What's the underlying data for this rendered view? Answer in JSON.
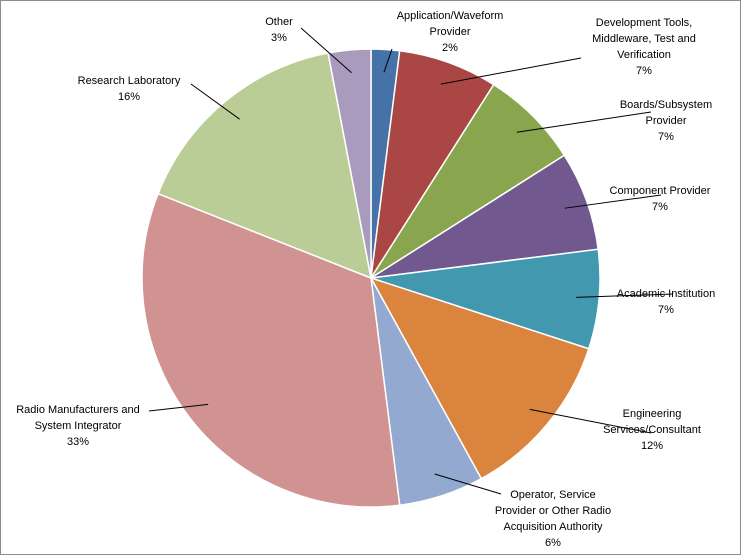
{
  "chart_data": {
    "type": "pie",
    "title": "",
    "slices": [
      {
        "label": [
          "Application/Waveform",
          "Provider"
        ],
        "pct_label": "2%",
        "value": 2,
        "color": "#4572A7"
      },
      {
        "label": [
          "Development Tools,",
          "Middleware, Test and",
          "Verification"
        ],
        "pct_label": "7%",
        "value": 7,
        "color": "#AA4643"
      },
      {
        "label": [
          "Boards/Subsystem",
          "Provider"
        ],
        "pct_label": "7%",
        "value": 7,
        "color": "#89A54E"
      },
      {
        "label": [
          "Component Provider"
        ],
        "pct_label": "7%",
        "value": 7,
        "color": "#71588F"
      },
      {
        "label": [
          "Academic Institution"
        ],
        "pct_label": "7%",
        "value": 7,
        "color": "#4198AF"
      },
      {
        "label": [
          "Engineering",
          "Services/Consultant"
        ],
        "pct_label": "12%",
        "value": 12,
        "color": "#DB843D"
      },
      {
        "label": [
          "Operator, Service",
          "Provider or Other Radio",
          "Acquisition Authority"
        ],
        "pct_label": "6%",
        "value": 6,
        "color": "#93A9D0"
      },
      {
        "label": [
          "Radio Manufacturers and",
          "System Integrator"
        ],
        "pct_label": "33%",
        "value": 33,
        "color": "#D09392"
      },
      {
        "label": [
          "Research Laboratory"
        ],
        "pct_label": "16%",
        "value": 16,
        "color": "#BACD96"
      },
      {
        "label": [
          "Other"
        ],
        "pct_label": "3%",
        "value": 3,
        "color": "#A99BBD"
      }
    ],
    "legend": "none",
    "start_angle_deg": 0,
    "direction": "clockwise"
  }
}
